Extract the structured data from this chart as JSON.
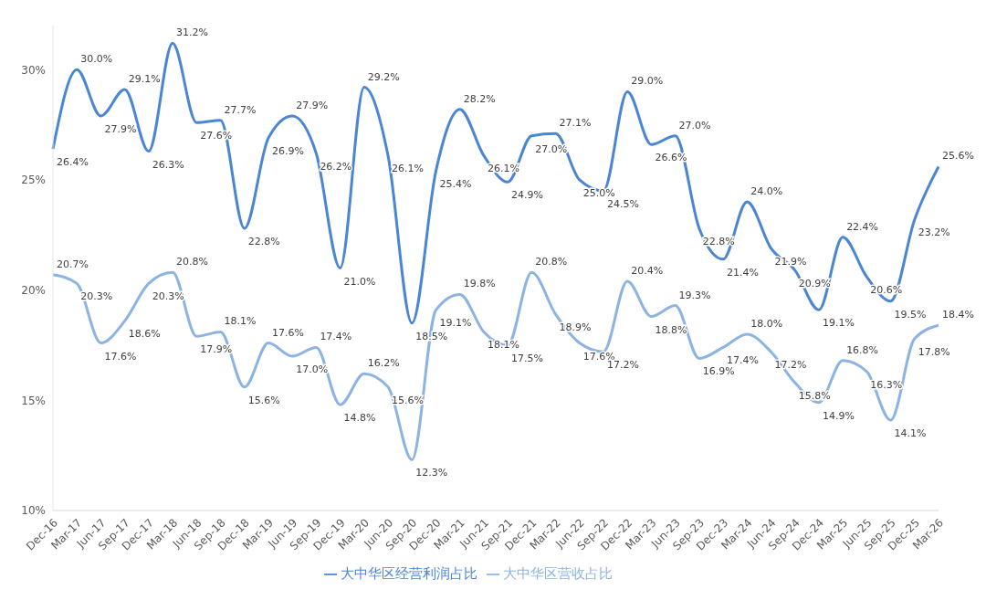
{
  "chart_data": {
    "type": "line",
    "categories": [
      "Dec-16",
      "Mar-17",
      "Jun-17",
      "Sep-17",
      "Dec-17",
      "Mar-18",
      "Jun-18",
      "Sep-18",
      "Dec-18",
      "Mar-19",
      "Jun-19",
      "Sep-19",
      "Dec-19",
      "Mar-20",
      "Jun-20",
      "Sep-20",
      "Dec-20",
      "Mar-21",
      "Jun-21",
      "Sep-21",
      "Dec-21",
      "Mar-22",
      "Jun-22",
      "Sep-22",
      "Dec-22",
      "Mar-23",
      "Jun-23",
      "Sep-23",
      "Dec-23",
      "Mar-24",
      "Jun-24",
      "Sep-24",
      "Dec-24",
      "Mar-25",
      "Jun-25",
      "Sep-25",
      "Dec-25",
      "Mar-26"
    ],
    "series": [
      {
        "name": "大中华区营收占比",
        "color": "#8db3e2",
        "values": [
          20.7,
          20.3,
          17.6,
          18.6,
          20.3,
          20.8,
          17.9,
          18.1,
          15.6,
          17.6,
          17.0,
          17.4,
          14.8,
          16.2,
          15.6,
          12.3,
          19.1,
          19.8,
          18.1,
          17.5,
          20.8,
          18.9,
          17.6,
          17.2,
          20.4,
          18.8,
          19.3,
          16.9,
          17.4,
          18.0,
          17.2,
          15.8,
          14.9,
          16.8,
          16.3,
          14.1,
          17.8,
          18.4
        ],
        "value_labels": [
          "20.7%",
          "20.3%",
          "17.6%",
          "18.6%",
          "20.3%",
          "20.8%",
          "17.9%",
          "18.1%",
          "15.6%",
          "17.6%",
          "17.0%",
          "17.4%",
          "14.8%",
          "16.2%",
          "15.6%",
          "12.3%",
          "19.1%",
          "19.8%",
          "18.1%",
          "17.5%",
          "20.8%",
          "18.9%",
          "17.6%",
          "17.2%",
          "20.4%",
          "18.8%",
          "19.3%",
          "16.9%",
          "17.4%",
          "18.0%",
          "17.2%",
          "15.8%",
          "14.9%",
          "16.8%",
          "16.3%",
          "14.1%",
          "17.8%",
          "18.4%"
        ]
      },
      {
        "name": "大中华区经营利润占比",
        "color": "#4a86d4",
        "values": [
          26.4,
          30.0,
          27.9,
          29.1,
          26.3,
          31.2,
          27.6,
          27.7,
          22.8,
          26.9,
          27.9,
          26.2,
          21.0,
          29.2,
          26.1,
          18.5,
          25.4,
          28.2,
          26.1,
          24.9,
          27.0,
          27.1,
          25.0,
          24.5,
          29.0,
          26.6,
          27.0,
          22.8,
          21.4,
          24.0,
          21.9,
          20.9,
          19.1,
          22.4,
          20.6,
          19.5,
          23.2,
          25.6
        ],
        "value_labels": [
          "26.4%",
          "30.0%",
          "27.9%",
          "29.1%",
          "26.3%",
          "31.2%",
          "27.6%",
          "27.7%",
          "22.8%",
          "26.9%",
          "27.9%",
          "26.2%",
          "21.0%",
          "29.2%",
          "26.1%",
          "18.5%",
          "25.4%",
          "28.2%",
          "26.1%",
          "24.9%",
          "27.0%",
          "27.1%",
          "25.0%",
          "24.5%",
          "29.0%",
          "26.6%",
          "27.0%",
          "22.8%",
          "21.4%",
          "24.0%",
          "21.9%",
          "20.9%",
          "19.1%",
          "22.4%",
          "20.6%",
          "19.5%",
          "23.2%",
          "25.6%"
        ]
      }
    ],
    "ylim": [
      10,
      32
    ],
    "yticks": [
      {
        "value": 10,
        "label": "10%"
      },
      {
        "value": 15,
        "label": "15%"
      },
      {
        "value": 20,
        "label": "20%"
      },
      {
        "value": 25,
        "label": "25%"
      },
      {
        "value": 30,
        "label": "30%"
      }
    ],
    "legend": "bottom",
    "marker": "none",
    "line_style": "solid"
  }
}
